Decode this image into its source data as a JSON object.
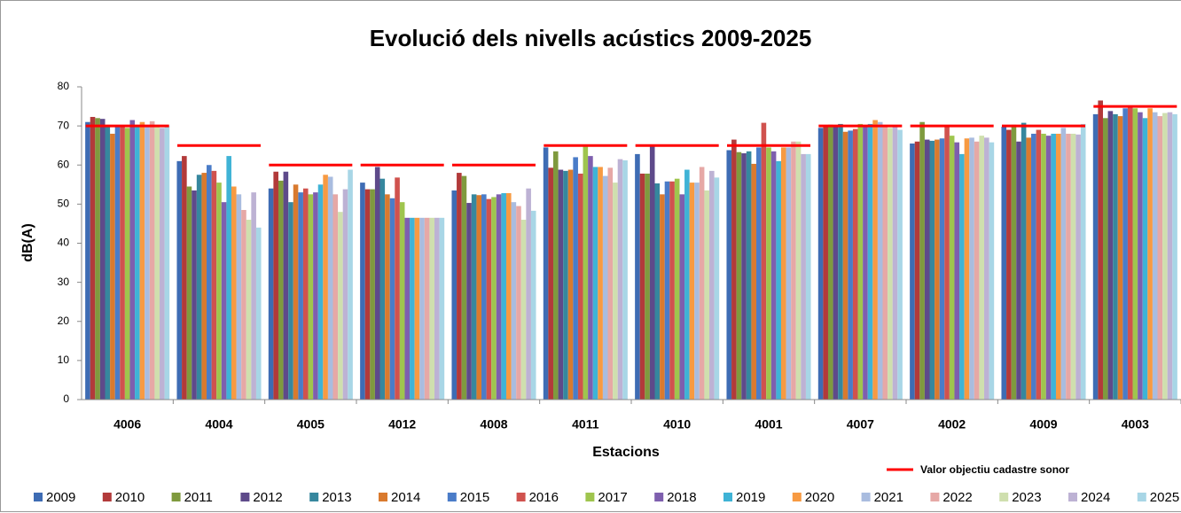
{
  "chart_data": {
    "type": "bar",
    "title": "Evolució dels nivells acústics 2009-2025",
    "y_label": "dB(A)",
    "x_label": "Estacions",
    "categories": [
      "4006",
      "4004",
      "4005",
      "4012",
      "4008",
      "4011",
      "4010",
      "4001",
      "4007",
      "4002",
      "4009",
      "4003"
    ],
    "ylim": [
      0,
      80
    ],
    "yticks": [
      0,
      10,
      20,
      30,
      40,
      50,
      60,
      70,
      80
    ],
    "series": [
      {
        "name": "2009",
        "color": "#3e6cb4",
        "values": [
          71,
          61,
          54,
          55.5,
          53.5,
          64.5,
          62.8,
          63.8,
          69.5,
          65.5,
          69.8,
          73
        ]
      },
      {
        "name": "2010",
        "color": "#b23a3a",
        "values": [
          72.3,
          62.3,
          58.3,
          53.8,
          58,
          59.3,
          57.8,
          66.5,
          70,
          66,
          69,
          76.5
        ]
      },
      {
        "name": "2011",
        "color": "#7f9a3e",
        "values": [
          72,
          54.5,
          56,
          53.8,
          57.2,
          63.5,
          57.8,
          63.3,
          70.3,
          71,
          70.3,
          72
        ]
      },
      {
        "name": "2012",
        "color": "#5e4a8a",
        "values": [
          71.8,
          53.5,
          58.3,
          59.5,
          50.3,
          58.8,
          65,
          63,
          69.8,
          66.5,
          66,
          73.8
        ]
      },
      {
        "name": "2013",
        "color": "#36879e",
        "values": [
          70,
          57.5,
          50.5,
          56.5,
          52.5,
          58.5,
          55.3,
          63.5,
          70.5,
          66.2,
          70.8,
          73
        ]
      },
      {
        "name": "2014",
        "color": "#d97a2e",
        "values": [
          68,
          58,
          55,
          52.5,
          52.3,
          58.8,
          52.5,
          60.3,
          68.5,
          66.5,
          67,
          72.5
        ]
      },
      {
        "name": "2015",
        "color": "#4a7cc8",
        "values": [
          70,
          60,
          53,
          51.5,
          52.5,
          62,
          55.8,
          64.5,
          68.8,
          66.8,
          68,
          74.5
        ]
      },
      {
        "name": "2016",
        "color": "#d0524e",
        "values": [
          70,
          58.5,
          54,
          56.8,
          51.3,
          57.8,
          55.8,
          70.8,
          69.2,
          70,
          69,
          75
        ]
      },
      {
        "name": "2017",
        "color": "#9fc54e",
        "values": [
          69.5,
          55.5,
          52.5,
          50.5,
          51.8,
          65,
          56.5,
          64.5,
          70.5,
          67.5,
          68,
          74.5
        ]
      },
      {
        "name": "2018",
        "color": "#7e5fae",
        "values": [
          71.5,
          50.5,
          53,
          46.5,
          52.5,
          62.3,
          52.5,
          63.5,
          70,
          65.8,
          67.5,
          73.5
        ]
      },
      {
        "name": "2019",
        "color": "#3fb3d6",
        "values": [
          70,
          62.3,
          55,
          46.5,
          52.8,
          59.5,
          58.8,
          61,
          70.5,
          62.8,
          68,
          72
        ]
      },
      {
        "name": "2020",
        "color": "#f79a42",
        "values": [
          71,
          54.5,
          57.5,
          46.5,
          52.8,
          59.5,
          55.5,
          64.5,
          71.5,
          66.8,
          68,
          74.5
        ]
      },
      {
        "name": "2021",
        "color": "#a9bcdf",
        "values": [
          70,
          52.5,
          57,
          46.5,
          50.5,
          57.2,
          55.5,
          64.5,
          71,
          67,
          69.5,
          73.5
        ]
      },
      {
        "name": "2022",
        "color": "#e6a8a6",
        "values": [
          71.2,
          48.5,
          52.5,
          46.5,
          49.5,
          59.3,
          59.5,
          66,
          70,
          66,
          68,
          72.5
        ]
      },
      {
        "name": "2023",
        "color": "#cfdfae",
        "values": [
          70,
          46,
          48,
          46.5,
          46,
          55.5,
          53.5,
          66,
          69.5,
          67.5,
          68,
          73.3
        ]
      },
      {
        "name": "2024",
        "color": "#bdb2d4",
        "values": [
          69.5,
          53,
          53.8,
          46.5,
          54,
          61.5,
          58.5,
          62.8,
          69.8,
          67,
          67.8,
          73.5
        ]
      },
      {
        "name": "2025",
        "color": "#a8d6e6",
        "values": [
          70,
          44,
          58.8,
          46.5,
          48.3,
          61.2,
          56.8,
          62.8,
          69,
          65.8,
          70.5,
          73
        ]
      }
    ],
    "target": {
      "name": "Valor objectiu cadastre sonor",
      "color": "#ff0000",
      "values": [
        70,
        65,
        60,
        60,
        60,
        65,
        65,
        65,
        70,
        70,
        70,
        75
      ]
    }
  }
}
